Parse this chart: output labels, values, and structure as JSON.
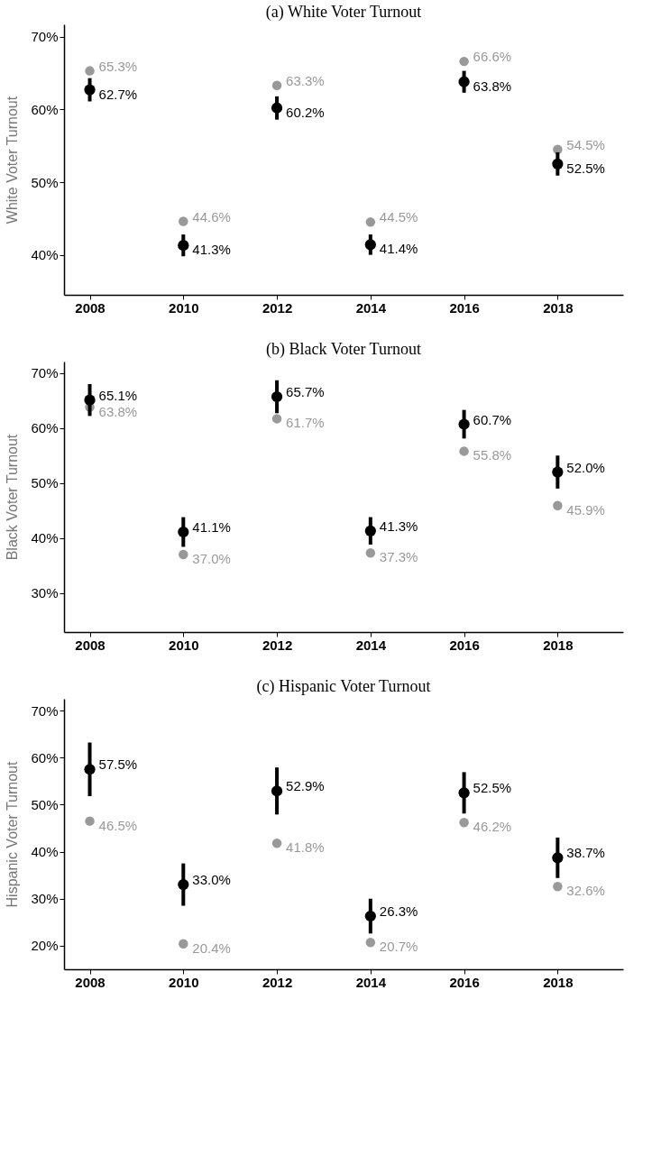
{
  "chart_data": [
    {
      "type": "scatter",
      "title": "(a) White Voter Turnout",
      "ylabel": "White Voter Turnout",
      "x": [
        2008,
        2010,
        2012,
        2014,
        2016,
        2018
      ],
      "xlim": [
        2007.45,
        2019.4
      ],
      "xticks": [
        2008,
        2010,
        2012,
        2014,
        2016,
        2018
      ],
      "ylim": [
        34.5,
        71.7
      ],
      "yticks": [
        {
          "value": 40,
          "label": "40%"
        },
        {
          "value": 50,
          "label": "50%"
        },
        {
          "value": 60,
          "label": "60%"
        },
        {
          "value": 70,
          "label": "70%"
        }
      ],
      "grid": false,
      "marker": "circle",
      "series": [
        {
          "color": "#999999",
          "values": [
            65.3,
            44.6,
            63.3,
            44.5,
            66.6,
            54.5
          ],
          "value_labels": [
            "65.3%",
            "44.6%",
            "63.3%",
            "44.5%",
            "66.6%",
            "54.5%"
          ]
        },
        {
          "color": "#000000",
          "values": [
            62.7,
            41.3,
            60.2,
            41.4,
            63.8,
            52.5
          ],
          "errors": [
            1.6,
            1.5,
            1.6,
            1.4,
            1.5,
            1.6
          ],
          "value_labels": [
            "62.7%",
            "41.3%",
            "60.2%",
            "41.4%",
            "63.8%",
            "52.5%"
          ]
        }
      ]
    },
    {
      "type": "scatter",
      "title": "(b) Black Voter Turnout",
      "ylabel": "Black Voter Turnout",
      "x": [
        2008,
        2010,
        2012,
        2014,
        2016,
        2018
      ],
      "xlim": [
        2007.45,
        2019.4
      ],
      "xticks": [
        2008,
        2010,
        2012,
        2014,
        2016,
        2018
      ],
      "ylim": [
        22.9,
        72.1
      ],
      "yticks": [
        {
          "value": 30,
          "label": "30%"
        },
        {
          "value": 40,
          "label": "40%"
        },
        {
          "value": 50,
          "label": "50%"
        },
        {
          "value": 60,
          "label": "60%"
        },
        {
          "value": 70,
          "label": "70%"
        }
      ],
      "grid": false,
      "marker": "circle",
      "series": [
        {
          "color": "#999999",
          "values": [
            63.8,
            37.0,
            61.7,
            37.3,
            55.8,
            45.9
          ],
          "value_labels": [
            "63.8%",
            "37.0%",
            "61.7%",
            "37.3%",
            "55.8%",
            "45.9%"
          ]
        },
        {
          "color": "#000000",
          "values": [
            65.1,
            41.1,
            65.7,
            41.3,
            60.7,
            52.0
          ],
          "errors": [
            2.9,
            2.7,
            3.0,
            2.5,
            2.6,
            3.0
          ],
          "value_labels": [
            "65.1%",
            "41.1%",
            "65.7%",
            "41.3%",
            "60.7%",
            "52.0%"
          ]
        }
      ]
    },
    {
      "type": "scatter",
      "title": "(c) Hispanic Voter Turnout",
      "ylabel": "Hispanic Voter Turnout",
      "x": [
        2008,
        2010,
        2012,
        2014,
        2016,
        2018
      ],
      "xlim": [
        2007.45,
        2019.4
      ],
      "xticks": [
        2008,
        2010,
        2012,
        2014,
        2016,
        2018
      ],
      "ylim": [
        15.0,
        72.5
      ],
      "yticks": [
        {
          "value": 20,
          "label": "20%"
        },
        {
          "value": 30,
          "label": "30%"
        },
        {
          "value": 40,
          "label": "40%"
        },
        {
          "value": 50,
          "label": "50%"
        },
        {
          "value": 60,
          "label": "60%"
        },
        {
          "value": 70,
          "label": "70%"
        }
      ],
      "grid": false,
      "marker": "circle",
      "series": [
        {
          "color": "#999999",
          "values": [
            46.5,
            20.4,
            41.8,
            20.7,
            46.2,
            32.6
          ],
          "value_labels": [
            "46.5%",
            "20.4%",
            "41.8%",
            "20.7%",
            "46.2%",
            "32.6%"
          ]
        },
        {
          "color": "#000000",
          "values": [
            57.5,
            33.0,
            52.9,
            26.3,
            52.5,
            38.7
          ],
          "errors": [
            5.7,
            4.5,
            5.0,
            3.7,
            4.4,
            4.3
          ],
          "value_labels": [
            "57.5%",
            "33.0%",
            "52.9%",
            "26.3%",
            "52.5%",
            "38.7%"
          ]
        }
      ]
    }
  ]
}
